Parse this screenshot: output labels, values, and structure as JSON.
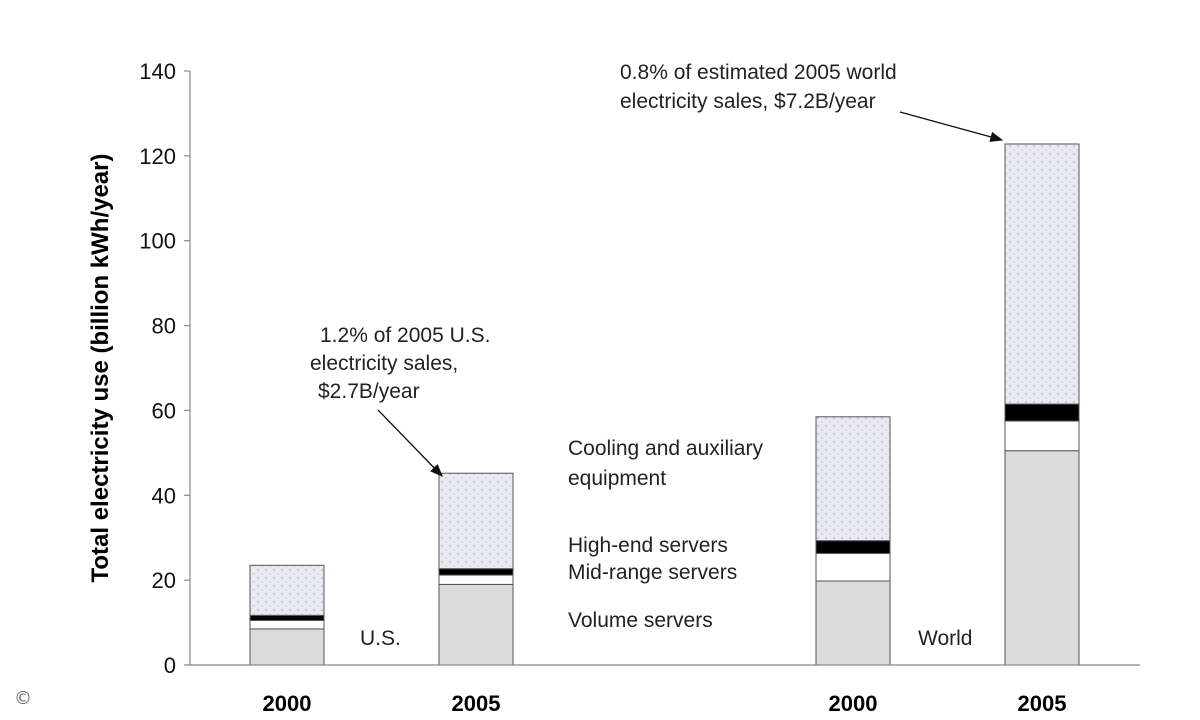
{
  "chart_data": {
    "type": "bar",
    "stacked": true,
    "ylabel": "Total electricity use (billion kWh/year)",
    "ylim": [
      0,
      140
    ],
    "yticks": [
      0,
      20,
      40,
      60,
      80,
      100,
      120,
      140
    ],
    "grid": false,
    "categories": [
      "2000",
      "2005",
      "2000",
      "2005"
    ],
    "groups": [
      {
        "label": "U.S.",
        "categories": [
          0,
          1
        ]
      },
      {
        "label": "World",
        "categories": [
          2,
          3
        ]
      }
    ],
    "series": [
      {
        "name": "Volume servers",
        "color": "#dcdcdc",
        "values": [
          8.5,
          19.0,
          19.8,
          50.5
        ]
      },
      {
        "name": "Mid-range servers",
        "color": "#ffffff",
        "values": [
          2.0,
          2.2,
          6.5,
          7.0
        ]
      },
      {
        "name": "High-end servers",
        "color": "#000000",
        "values": [
          1.2,
          1.5,
          3.0,
          4.0
        ]
      },
      {
        "name": "Cooling and auxiliary equipment",
        "color": "#e8e8f2",
        "values": [
          11.8,
          22.5,
          29.2,
          61.3
        ]
      }
    ],
    "legend_lines": {
      "cooling": [
        "Cooling and auxiliary",
        "equipment"
      ],
      "high_end": "High-end servers",
      "mid_range": "Mid-range servers",
      "volume": "Volume servers"
    },
    "annotations": [
      {
        "lines": [
          "1.2% of 2005 U.S.",
          "electricity sales,",
          "$2.7B/year"
        ],
        "category": 1
      },
      {
        "lines": [
          "0.8% of estimated 2005 world",
          "electricity sales, $7.2B/year"
        ],
        "category": 3
      }
    ]
  },
  "copyright_mark": "©"
}
